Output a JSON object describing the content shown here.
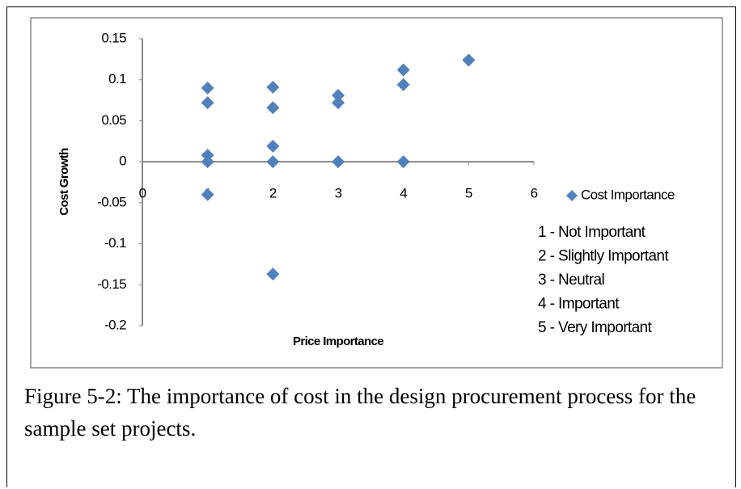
{
  "chart_data": {
    "type": "scatter",
    "xlabel": "Price Importance",
    "ylabel": "Cost Growth",
    "x": [
      1,
      1,
      1,
      1,
      1,
      2,
      2,
      2,
      2,
      2,
      3,
      3,
      3,
      4,
      4,
      4,
      5
    ],
    "series": [
      {
        "name": "Cost Importance",
        "color": "#4f81bd",
        "values": [
          0.09,
          0.072,
          0.008,
          0,
          -0.04,
          0.091,
          0.066,
          0.019,
          0,
          -0.137,
          0.081,
          0.072,
          0,
          0.112,
          0.094,
          0,
          0.124
        ]
      }
    ],
    "xlim": [
      0,
      6
    ],
    "xticks": [
      0,
      1,
      2,
      3,
      4,
      5,
      6
    ],
    "ylim": [
      -0.2,
      0.15
    ],
    "yticks": [
      0.15,
      0.1,
      0.05,
      0,
      -0.05,
      -0.1,
      -0.15,
      -0.2
    ],
    "legend": "right",
    "annotations": [
      "1 - Not Important",
      "2 - Slightly Important",
      "3 - Neutral",
      "4 - Important",
      "5 - Very Important"
    ]
  },
  "caption": "Figure 5-2: The importance of cost in the design procurement process for the sample set projects."
}
